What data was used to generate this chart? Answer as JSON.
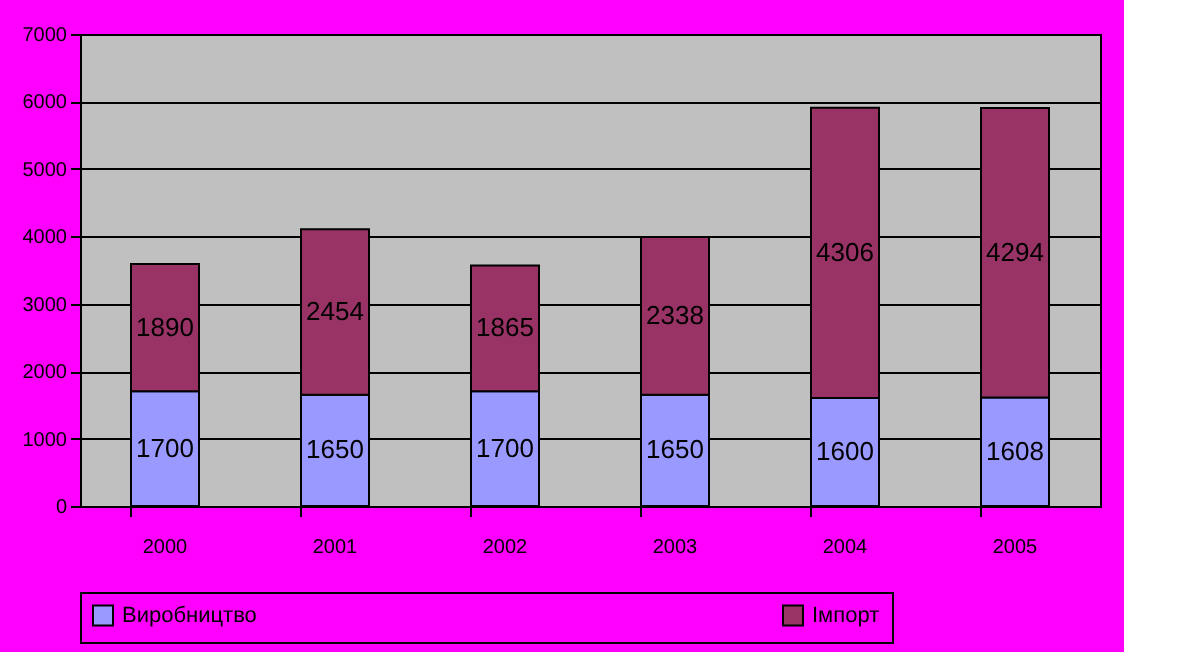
{
  "chart_data": {
    "type": "bar",
    "stacked": true,
    "categories": [
      "2000",
      "2001",
      "2002",
      "2003",
      "2004",
      "2005"
    ],
    "series": [
      {
        "name": "Виробництво",
        "color": "#9999ff",
        "values": [
          1700,
          1650,
          1700,
          1650,
          1600,
          1608
        ]
      },
      {
        "name": "Імпорт",
        "color": "#993366",
        "values": [
          1890,
          2454,
          1865,
          2338,
          4306,
          4294
        ]
      }
    ],
    "ylim": [
      0,
      7000
    ],
    "yticks": [
      0,
      1000,
      2000,
      3000,
      4000,
      5000,
      6000,
      7000
    ],
    "grid": "y",
    "legend": "bottom",
    "data_labels": true
  }
}
